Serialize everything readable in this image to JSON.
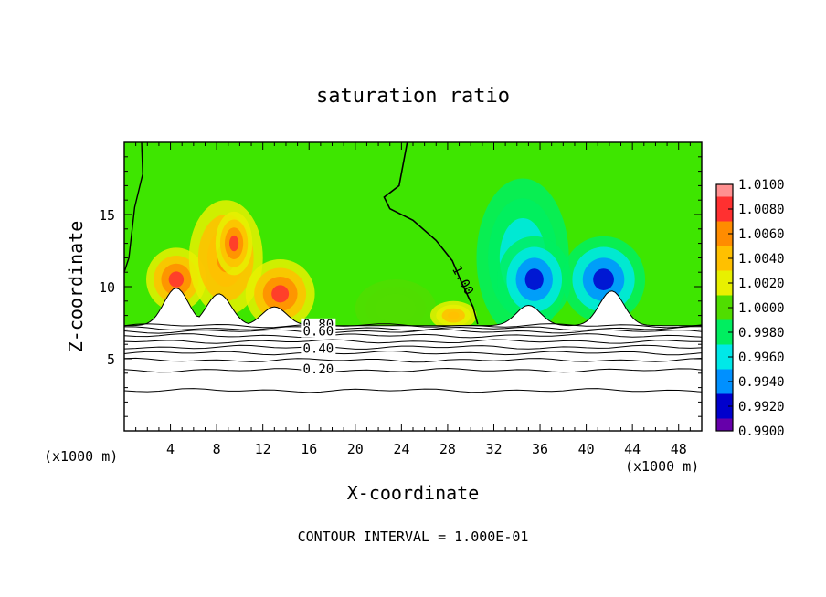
{
  "chart_data": {
    "type": "heatmap",
    "title": "saturation ratio",
    "xlabel": "X-coordinate",
    "ylabel": "Z-coordinate",
    "x_unit_left": "(x1000 m)",
    "x_unit_right": "(x1000 m)",
    "footer": "CONTOUR INTERVAL = 1.000E-01",
    "xlim": [
      0,
      50
    ],
    "ylim": [
      0,
      20
    ],
    "x_ticks": [
      "4",
      "8",
      "12",
      "16",
      "20",
      "24",
      "28",
      "32",
      "36",
      "40",
      "44",
      "48"
    ],
    "x_tick_values": [
      4,
      8,
      12,
      16,
      20,
      24,
      28,
      32,
      36,
      40,
      44,
      48
    ],
    "y_ticks": [
      "5",
      "10",
      "15"
    ],
    "y_tick_values": [
      5,
      10,
      15
    ],
    "colorbar": {
      "labels": [
        "1.0100",
        "1.0080",
        "1.0060",
        "1.0040",
        "1.0020",
        "1.0000",
        "0.9980",
        "0.9960",
        "0.9940",
        "0.9920",
        "0.9900"
      ],
      "colors": [
        "#ff9090",
        "#ff3030",
        "#ff8c00",
        "#ffc000",
        "#e8f000",
        "#50dd00",
        "#00ee60",
        "#00e8e8",
        "#0090ff",
        "#0000cc",
        "#6600aa"
      ]
    },
    "contour_labels": [
      {
        "text": "1.00",
        "x": 29.0,
        "z": 10.3
      },
      {
        "text": "0.80",
        "x": 16.8,
        "z": 7.1
      },
      {
        "text": "0.60",
        "x": 16.8,
        "z": 6.6
      },
      {
        "text": "0.40",
        "x": 16.8,
        "z": 5.4
      },
      {
        "text": "0.20",
        "x": 16.8,
        "z": 4.0
      }
    ],
    "contour_levels_below": [
      7.3,
      7.1,
      6.9,
      6.6,
      6.2,
      5.8,
      5.4,
      4.9,
      4.2,
      2.8
    ],
    "terrain_peaks": [
      {
        "x": 4.5,
        "z": 9.9
      },
      {
        "x": 8.2,
        "z": 9.5
      },
      {
        "x": 13.0,
        "z": 8.6
      },
      {
        "x": 35.0,
        "z": 8.7
      },
      {
        "x": 42.2,
        "z": 9.7
      }
    ],
    "anomalies": [
      {
        "x": 4.5,
        "z": 10.5,
        "rx": 2.6,
        "rz": 2.2,
        "value": 1.0085
      },
      {
        "x": 8.8,
        "z": 12.0,
        "rx": 3.2,
        "rz": 4.0,
        "value": 1.006
      },
      {
        "x": 9.5,
        "z": 13.0,
        "rx": 1.6,
        "rz": 2.2,
        "value": 1.008
      },
      {
        "x": 13.5,
        "z": 9.5,
        "rx": 3.0,
        "rz": 2.4,
        "value": 1.008
      },
      {
        "x": 23.5,
        "z": 8.5,
        "rx": 3.5,
        "rz": 2.0,
        "value": 1.001
      },
      {
        "x": 28.5,
        "z": 8.0,
        "rx": 2.0,
        "rz": 1.0,
        "value": 1.005
      },
      {
        "x": 34.5,
        "z": 12.0,
        "rx": 4.0,
        "rz": 5.5,
        "value": 0.9955
      },
      {
        "x": 35.5,
        "z": 10.5,
        "rx": 3.2,
        "rz": 3.0,
        "value": 0.9915
      },
      {
        "x": 41.5,
        "z": 10.5,
        "rx": 3.6,
        "rz": 3.0,
        "value": 0.992
      }
    ]
  }
}
